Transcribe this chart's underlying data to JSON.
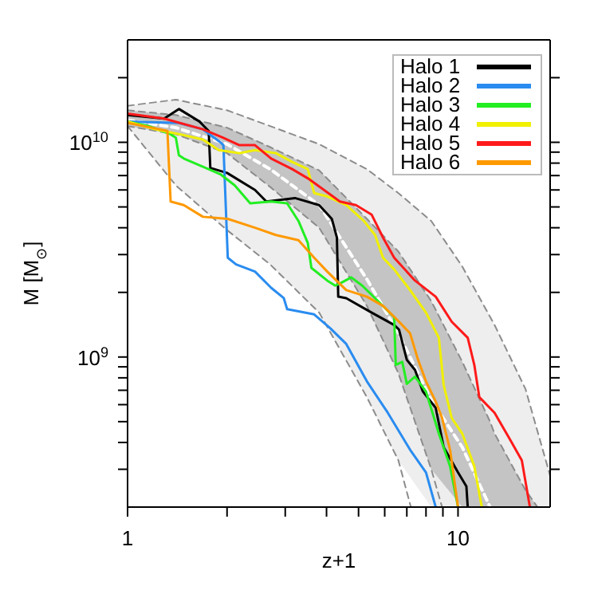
{
  "chart_data": {
    "type": "line",
    "xlabel": "z+1",
    "ylabel": "M [M$_{⊙}$]",
    "log": "xy",
    "legend": "top right",
    "xlim": [
      1,
      19
    ],
    "ylim": [
      200000000.0,
      30000000000.0
    ],
    "xticks": [
      1,
      {
        "value": 2,
        "label": null
      },
      {
        "value": 3,
        "label": null
      },
      {
        "value": 4,
        "label": null
      },
      {
        "value": 5,
        "label": null
      },
      {
        "value": 6,
        "label": null
      },
      {
        "value": 7,
        "label": null
      },
      {
        "value": 8,
        "label": null
      },
      {
        "value": 9,
        "label": null
      },
      10
    ],
    "yticks": [
      {
        "value": 300000000.0,
        "label": null
      },
      {
        "value": 400000000.0,
        "label": null
      },
      {
        "value": 500000000.0,
        "label": null
      },
      {
        "value": 600000000.0,
        "label": null
      },
      {
        "value": 700000000.0,
        "label": null
      },
      {
        "value": 800000000.0,
        "label": null
      },
      {
        "value": 900000000.0,
        "label": null
      },
      {
        "value": 1000000000.0,
        "label": "10$^{9}$"
      },
      {
        "value": 2000000000.0,
        "label": null
      },
      {
        "value": 3000000000.0,
        "label": null
      },
      {
        "value": 4000000000.0,
        "label": null
      },
      {
        "value": 5000000000.0,
        "label": null
      },
      {
        "value": 6000000000.0,
        "label": null
      },
      {
        "value": 7000000000.0,
        "label": null
      },
      {
        "value": 8000000000.0,
        "label": null
      },
      {
        "value": 9000000000.0,
        "label": null
      },
      {
        "value": 10000000000.0,
        "label": "10$^{10}$"
      },
      {
        "value": 20000000000.0,
        "label": null
      }
    ],
    "series": [
      {
        "color": "#eeeeee",
        "x": [
          1,
          1.4,
          2,
          2.7,
          3.8,
          5.3,
          6.6,
          8.3,
          10.3,
          12.9,
          16,
          19
        ],
        "values": [
          null,
          null,
          null,
          null,
          null,
          null,
          null,
          null,
          null,
          null,
          null,
          null
        ],
        "lower": [
          11900000000.0,
          6300000000.0,
          3900000000.0,
          2700000000.0,
          1610000000.0,
          650000000.0,
          330000000.0,
          200000000.0,
          200000000.0,
          200000000.0,
          200000000.0,
          200000000.0
        ],
        "upper": [
          14800000000.0,
          15800000000.0,
          14100000000.0,
          11900000000.0,
          9800000000.0,
          7500000000.0,
          5800000000.0,
          4300000000.0,
          2640000000.0,
          1410000000.0,
          710000000.0,
          280000000.0
        ]
      },
      {
        "color": "#c4c4c4",
        "x": [
          1,
          1.4,
          2,
          2.7,
          3.8,
          5.3,
          6.6,
          8.3,
          10.3,
          12.5,
          12.9,
          16,
          17.4
        ],
        "values": [
          null,
          null,
          null,
          null,
          null,
          null,
          null,
          null,
          null,
          null,
          null,
          null,
          null
        ],
        "lower": [
          11900000000.0,
          10900000000.0,
          8900000000.0,
          6200000000.0,
          4000000000.0,
          1730000000.0,
          840000000.0,
          300000000.0,
          200000000.0,
          200000000.0,
          200000000.0,
          200000000.0,
          200000000.0
        ],
        "upper": [
          14100000000.0,
          13400000000.0,
          11700000000.0,
          9500000000.0,
          7400000000.0,
          4400000000.0,
          3100000000.0,
          1820000000.0,
          950000000.0,
          500000000.0,
          440000000.0,
          240000000.0,
          200000000.0
        ]
      },
      {
        "color": "#8c8c8c",
        "line_style": "dashed",
        "x": [
          1,
          1.4,
          2,
          2.7,
          3.8,
          5.3,
          6.6,
          7.2
        ],
        "values": [
          11900000000.0,
          6300000000.0,
          3900000000.0,
          2700000000.0,
          1610000000.0,
          650000000.0,
          330000000.0,
          200000000.0
        ]
      },
      {
        "color": "#8c8c8c",
        "line_style": "dashed",
        "x": [
          1,
          1.4,
          2,
          2.7,
          3.8,
          5.3,
          6.6,
          8.3,
          10.3,
          12.9,
          16,
          19
        ],
        "values": [
          14800000000.0,
          15800000000.0,
          14100000000.0,
          11900000000.0,
          9800000000.0,
          7500000000.0,
          5800000000.0,
          4300000000.0,
          2640000000.0,
          1410000000.0,
          710000000.0,
          280000000.0
        ]
      },
      {
        "color": "#8c8c8c",
        "line_style": "dashed",
        "x": [
          1,
          1.4,
          2,
          2.7,
          3.8,
          5.3,
          6.6,
          8.3,
          8.95
        ],
        "values": [
          11900000000.0,
          10900000000.0,
          8900000000.0,
          6200000000.0,
          4000000000.0,
          1730000000.0,
          840000000.0,
          300000000.0,
          200000000.0
        ]
      },
      {
        "color": "#8c8c8c",
        "line_style": "dashed",
        "x": [
          1,
          1.4,
          2,
          2.7,
          3.8,
          5.3,
          6.6,
          8.3,
          10.3,
          12.5,
          12.9,
          16,
          17.4
        ],
        "values": [
          14100000000.0,
          13400000000.0,
          11700000000.0,
          9500000000.0,
          7400000000.0,
          4400000000.0,
          3100000000.0,
          1820000000.0,
          950000000.0,
          500000000.0,
          440000000.0,
          240000000.0,
          200000000.0
        ]
      },
      {
        "color": "#ffffff",
        "line_style": "dashed",
        "x": [
          1,
          1.4,
          2,
          2.7,
          3.8,
          5.3,
          6.6,
          8.3,
          10.3,
          12.5
        ],
        "values": [
          12700000000.0,
          11700000000.0,
          9800000000.0,
          7500000000.0,
          5100000000.0,
          2300000000.0,
          1290000000.0,
          630000000.0,
          380000000.0,
          200000000.0
        ]
      },
      {
        "name": "Halo 1",
        "color": "#000000",
        "x": [
          1,
          1.29,
          1.43,
          1.65,
          1.76,
          1.78,
          2.0,
          2.43,
          2.63,
          3.21,
          3.8,
          4.15,
          4.3,
          4.34,
          4.59,
          5.48,
          6.41,
          6.63,
          7.0,
          7.41,
          7.83,
          8.56,
          9.05,
          10.0,
          10.6,
          10.7
        ],
        "values": [
          13400000000.0,
          12900000000.0,
          14300000000.0,
          12500000000.0,
          11300000000.0,
          7600000000.0,
          7200000000.0,
          6000000000.0,
          5300000000.0,
          5500000000.0,
          5100000000.0,
          4400000000.0,
          3600000000.0,
          1910000000.0,
          1880000000.0,
          1610000000.0,
          1410000000.0,
          1340000000.0,
          970000000.0,
          870000000.0,
          690000000.0,
          580000000.0,
          380000000.0,
          290000000.0,
          250000000.0,
          200000000.0
        ]
      },
      {
        "name": "Halo 2",
        "color": "#2a8cf0",
        "x": [
          1,
          1.43,
          1.69,
          1.91,
          1.95,
          2.01,
          2.13,
          2.43,
          2.72,
          2.97,
          3.04,
          3.67,
          4.11,
          4.59,
          5.3,
          6.13,
          7.16,
          8.0,
          8.56
        ],
        "values": [
          12500000000.0,
          12300000000.0,
          11500000000.0,
          10000000000.0,
          9700000000.0,
          2900000000.0,
          2700000000.0,
          2500000000.0,
          2100000000.0,
          1880000000.0,
          1670000000.0,
          1580000000.0,
          1360000000.0,
          1150000000.0,
          770000000.0,
          550000000.0,
          370000000.0,
          290000000.0,
          200000000.0
        ]
      },
      {
        "name": "Halo 3",
        "color": "#22ee22",
        "x": [
          1,
          1.16,
          1.35,
          1.4,
          1.43,
          1.48,
          1.69,
          1.91,
          2.11,
          2.35,
          2.72,
          3.04,
          3.29,
          3.51,
          3.6,
          4.02,
          4.25,
          4.39,
          4.75,
          5.13,
          5.73,
          6.41,
          6.48,
          6.78,
          7.0,
          7.41,
          8.0,
          8.75,
          9.46,
          10.0
        ],
        "values": [
          12500000000.0,
          11900000000.0,
          10900000000.0,
          10500000000.0,
          8700000000.0,
          8400000000.0,
          7700000000.0,
          7100000000.0,
          6300000000.0,
          5200000000.0,
          5300000000.0,
          5200000000.0,
          4300000000.0,
          3400000000.0,
          2600000000.0,
          2270000000.0,
          2150000000.0,
          2200000000.0,
          2350000000.0,
          2150000000.0,
          1820000000.0,
          1530000000.0,
          920000000.0,
          950000000.0,
          750000000.0,
          810000000.0,
          690000000.0,
          440000000.0,
          310000000.0,
          200000000.0
        ]
      },
      {
        "name": "Halo 4",
        "color": "#f0f000",
        "x": [
          1,
          1.21,
          1.44,
          1.69,
          1.89,
          2.18,
          2.43,
          2.81,
          3.15,
          3.51,
          3.67,
          4.02,
          4.59,
          5.19,
          5.61,
          5.93,
          6.41,
          7.16,
          8.0,
          8.75,
          9.05,
          9.57,
          10.3,
          11.2,
          11.8
        ],
        "values": [
          12500000000.0,
          11500000000.0,
          10900000000.0,
          10300000000.0,
          9200000000.0,
          8900000000.0,
          9200000000.0,
          8900000000.0,
          8100000000.0,
          7500000000.0,
          5800000000.0,
          5600000000.0,
          5100000000.0,
          4300000000.0,
          3700000000.0,
          2900000000.0,
          2560000000.0,
          2050000000.0,
          1610000000.0,
          1230000000.0,
          740000000.0,
          520000000.0,
          440000000.0,
          310000000.0,
          200000000.0
        ]
      },
      {
        "name": "Halo 5",
        "color": "#ff1a1a",
        "x": [
          1,
          1.29,
          1.69,
          1.95,
          2.18,
          2.43,
          2.72,
          3.15,
          3.51,
          3.93,
          4.39,
          4.91,
          5.48,
          5.93,
          6.41,
          7.41,
          8.56,
          9.57,
          10.7,
          11.2,
          11.6,
          12.9,
          14.4,
          15.6,
          16.5
        ],
        "values": [
          13600000000.0,
          12900000000.0,
          11500000000.0,
          10500000000.0,
          9700000000.0,
          9700000000.0,
          8400000000.0,
          7500000000.0,
          6800000000.0,
          6000000000.0,
          5300000000.0,
          5100000000.0,
          4600000000.0,
          3600000000.0,
          2900000000.0,
          2270000000.0,
          1910000000.0,
          1460000000.0,
          1230000000.0,
          920000000.0,
          650000000.0,
          550000000.0,
          410000000.0,
          330000000.0,
          200000000.0
        ]
      },
      {
        "name": "Halo 6",
        "color": "#ff9900",
        "x": [
          1,
          1.12,
          1.25,
          1.32,
          1.35,
          1.48,
          1.69,
          2.01,
          2.43,
          2.81,
          3.29,
          3.67,
          4.02,
          4.59,
          5.3,
          5.93,
          6.63,
          7.16,
          7.57,
          8.0,
          8.56,
          8.95,
          9.46,
          10.0
        ],
        "values": [
          12300000000.0,
          11900000000.0,
          11500000000.0,
          11300000000.0,
          5300000000.0,
          5100000000.0,
          4500000000.0,
          4400000000.0,
          4000000000.0,
          3700000000.0,
          3500000000.0,
          2900000000.0,
          2500000000.0,
          2050000000.0,
          1910000000.0,
          1730000000.0,
          1460000000.0,
          1290000000.0,
          970000000.0,
          770000000.0,
          620000000.0,
          520000000.0,
          370000000.0,
          200000000.0
        ]
      }
    ]
  }
}
